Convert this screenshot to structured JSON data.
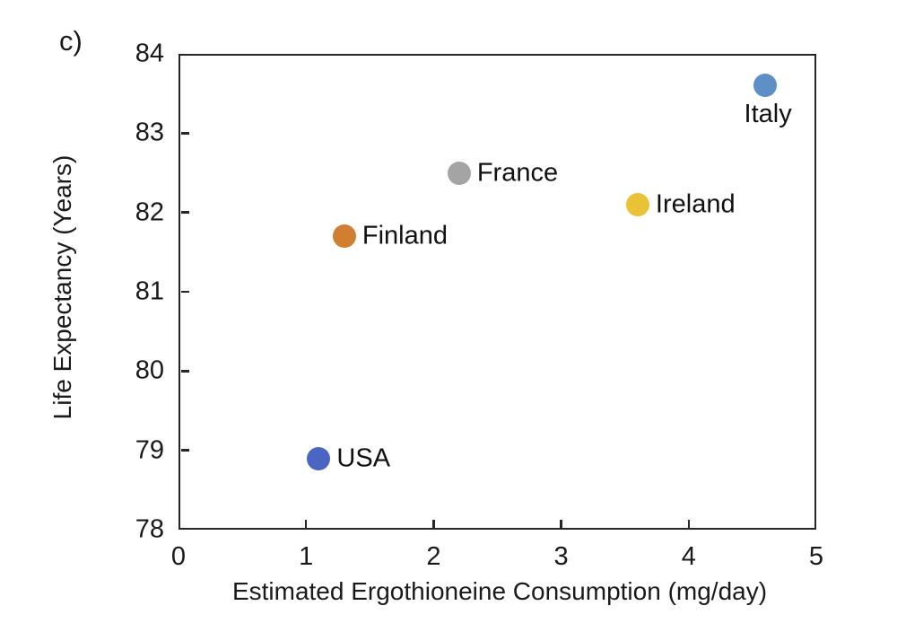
{
  "panel_label": "c)",
  "chart_data": {
    "type": "scatter",
    "title": "",
    "xlabel": "Estimated Ergothioneine Consumption (mg/day)",
    "ylabel": "Life Expectancy (Years)",
    "xlim": [
      0,
      5
    ],
    "ylim": [
      78,
      84
    ],
    "xticks": [
      0,
      1,
      2,
      3,
      4,
      5
    ],
    "yticks": [
      78,
      79,
      80,
      81,
      82,
      83,
      84
    ],
    "grid": false,
    "legend": "none",
    "marker_diameter_px": 26,
    "axis_color": "#262626",
    "text_color": "#1a1a1a",
    "background_color": "#ffffff",
    "points": [
      {
        "label": "USA",
        "x": 1.1,
        "y": 78.9,
        "color": "#4b66c2",
        "label_pos": "right"
      },
      {
        "label": "Finland",
        "x": 1.3,
        "y": 81.7,
        "color": "#d07e2f",
        "label_pos": "right"
      },
      {
        "label": "France",
        "x": 2.2,
        "y": 82.5,
        "color": "#a4a4a4",
        "label_pos": "right"
      },
      {
        "label": "Ireland",
        "x": 3.6,
        "y": 82.1,
        "color": "#e9c235",
        "label_pos": "right"
      },
      {
        "label": "Italy",
        "x": 4.6,
        "y": 83.6,
        "color": "#5f8fc7",
        "label_pos": "below"
      }
    ]
  }
}
